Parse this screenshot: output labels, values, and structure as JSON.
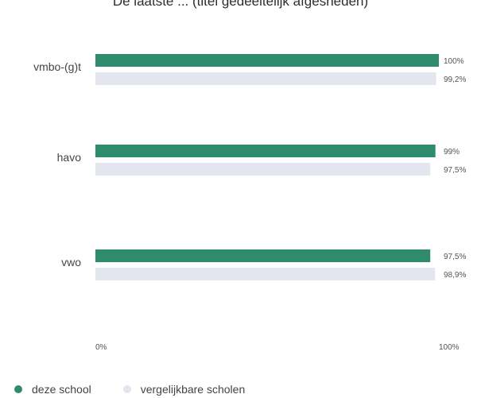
{
  "chart_data": {
    "type": "bar",
    "orientation": "horizontal",
    "title": "De laatste ... (titel gedeeltelijk afgesneden)",
    "categories": [
      "vmbo-(g)t",
      "havo",
      "vwo"
    ],
    "series": [
      {
        "name": "deze school",
        "color": "#2e8b6e",
        "values": [
          100,
          99,
          97.5
        ],
        "labels": [
          "100%",
          "99%",
          "97,5%"
        ]
      },
      {
        "name": "vergelijkbare scholen",
        "color": "#e3e5ef",
        "values": [
          99.2,
          97.5,
          98.9
        ],
        "labels": [
          "99,2%",
          "97,5%",
          "98,9%"
        ]
      }
    ],
    "xlim": [
      0,
      100
    ],
    "x_tick_labels": [
      "0%",
      "100%"
    ],
    "legend_position": "bottom-left",
    "grid": false
  }
}
